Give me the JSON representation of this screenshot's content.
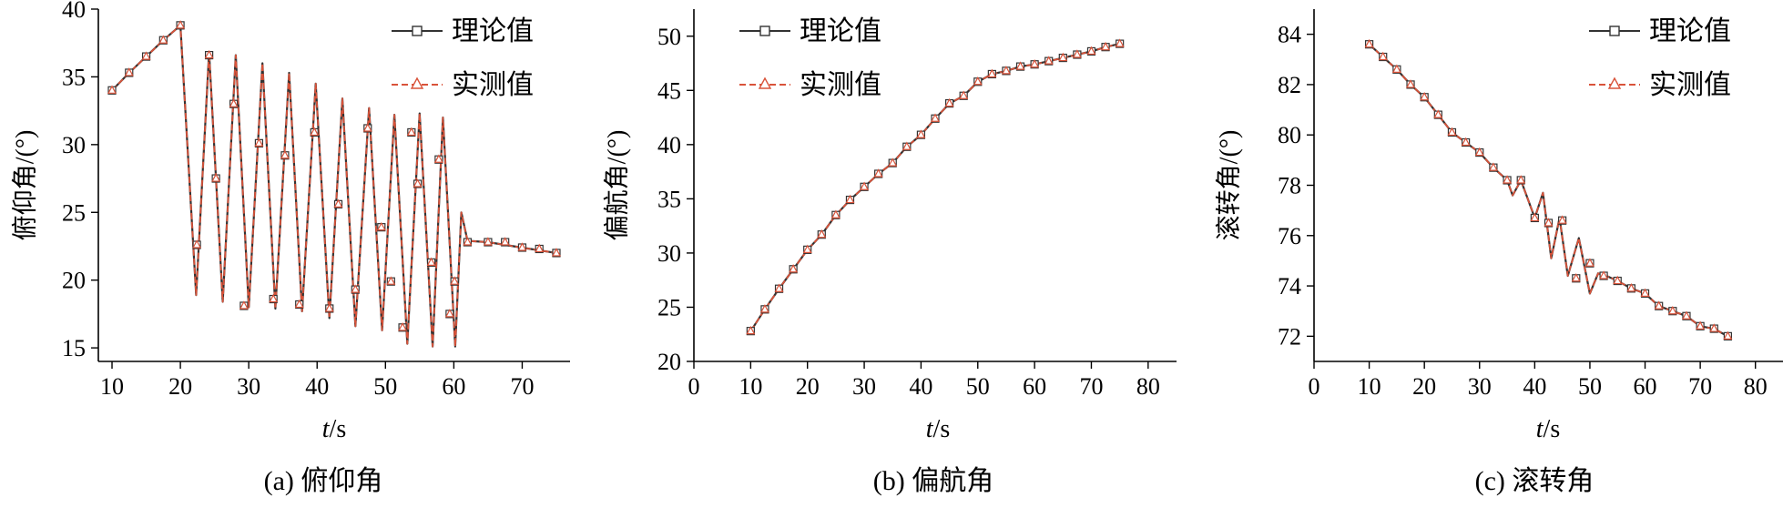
{
  "colors": {
    "theory": "#333333",
    "measured": "#d9533a",
    "axis": "#000000"
  },
  "chart_data": [
    {
      "type": "line",
      "caption": "(a) 俯仰角",
      "xlabel_var": "t",
      "xlabel_unit": "/s",
      "ylabel": "俯仰角/(°)",
      "xlim": [
        8,
        77
      ],
      "ylim": [
        14,
        40
      ],
      "xticks": [
        10,
        20,
        30,
        40,
        50,
        60,
        70
      ],
      "yticks": [
        15,
        20,
        25,
        30,
        35,
        40
      ],
      "legend": [
        "理论值",
        "实测值"
      ],
      "theory_line": [
        [
          10,
          34
        ],
        [
          12.5,
          35.3
        ],
        [
          15,
          36.5
        ],
        [
          17.5,
          37.7
        ],
        [
          20,
          38.8
        ],
        [
          22.3,
          18.9
        ],
        [
          24.2,
          36.8
        ],
        [
          26.2,
          18.4
        ],
        [
          28.1,
          36.6
        ],
        [
          30,
          18
        ],
        [
          32,
          36
        ],
        [
          33.9,
          17.9
        ],
        [
          35.9,
          35.3
        ],
        [
          37.8,
          17.7
        ],
        [
          39.8,
          34.5
        ],
        [
          41.8,
          17.2
        ],
        [
          43.7,
          33.4
        ],
        [
          45.6,
          16.6
        ],
        [
          47.6,
          32.7
        ],
        [
          49.5,
          16.3
        ],
        [
          51.3,
          32.2
        ],
        [
          53.2,
          15.3
        ],
        [
          55,
          32.3
        ],
        [
          56.9,
          15.1
        ],
        [
          58.4,
          32
        ],
        [
          60.2,
          15.1
        ],
        [
          61.1,
          25
        ],
        [
          62,
          22.9
        ],
        [
          65,
          22.8
        ],
        [
          70,
          22.4
        ],
        [
          75,
          22
        ]
      ],
      "markers": [
        [
          10,
          34
        ],
        [
          12.5,
          35.3
        ],
        [
          15,
          36.5
        ],
        [
          17.5,
          37.7
        ],
        [
          20,
          38.8
        ],
        [
          22.4,
          22.6
        ],
        [
          24.2,
          36.6
        ],
        [
          25.2,
          27.5
        ],
        [
          27.8,
          33
        ],
        [
          29.3,
          18.1
        ],
        [
          31.5,
          30.1
        ],
        [
          33.6,
          18.6
        ],
        [
          35.3,
          29.2
        ],
        [
          37.4,
          18.2
        ],
        [
          39.6,
          30.9
        ],
        [
          41.8,
          17.9
        ],
        [
          43.1,
          25.6
        ],
        [
          45.6,
          19.3
        ],
        [
          47.4,
          31.2
        ],
        [
          49.4,
          23.9
        ],
        [
          50.8,
          19.9
        ],
        [
          52.5,
          16.5
        ],
        [
          53.8,
          30.9
        ],
        [
          54.7,
          27.1
        ],
        [
          56.7,
          21.3
        ],
        [
          57.8,
          28.9
        ],
        [
          59.4,
          17.5
        ],
        [
          60.1,
          19.9
        ],
        [
          62,
          22.8
        ],
        [
          65,
          22.8
        ],
        [
          67.5,
          22.8
        ],
        [
          70,
          22.4
        ],
        [
          72.5,
          22.3
        ],
        [
          75,
          22
        ]
      ]
    },
    {
      "type": "line",
      "caption": "(b) 偏航角",
      "xlabel_var": "t",
      "xlabel_unit": "/s",
      "ylabel": "偏航角/(°)",
      "xlim": [
        0,
        85
      ],
      "ylim": [
        20,
        52.5
      ],
      "xticks": [
        0,
        10,
        20,
        30,
        40,
        50,
        60,
        70,
        80
      ],
      "yticks": [
        20,
        25,
        30,
        35,
        40,
        45,
        50
      ],
      "legend": [
        "理论值",
        "实测值"
      ],
      "theory_line": [
        [
          10,
          22.8
        ],
        [
          12.5,
          24.8
        ],
        [
          15,
          26.7
        ],
        [
          17.5,
          28.5
        ],
        [
          20,
          30.3
        ],
        [
          22.5,
          31.7
        ],
        [
          25,
          33.5
        ],
        [
          27.5,
          34.9
        ],
        [
          30,
          36.1
        ],
        [
          32.5,
          37.3
        ],
        [
          35,
          38.3
        ],
        [
          37.5,
          39.8
        ],
        [
          40,
          40.9
        ],
        [
          42.5,
          42.4
        ],
        [
          45,
          43.8
        ],
        [
          47.5,
          44.5
        ],
        [
          50,
          45.8
        ],
        [
          52.5,
          46.5
        ],
        [
          55,
          46.8
        ],
        [
          57.5,
          47.2
        ],
        [
          60,
          47.4
        ],
        [
          62.5,
          47.7
        ],
        [
          65,
          48
        ],
        [
          67.5,
          48.3
        ],
        [
          70,
          48.6
        ],
        [
          72.5,
          49
        ],
        [
          75,
          49.3
        ]
      ],
      "markers": [
        [
          10,
          22.8
        ],
        [
          12.5,
          24.8
        ],
        [
          15,
          26.7
        ],
        [
          17.5,
          28.5
        ],
        [
          20,
          30.3
        ],
        [
          22.5,
          31.7
        ],
        [
          25,
          33.5
        ],
        [
          27.5,
          34.9
        ],
        [
          30,
          36.1
        ],
        [
          32.5,
          37.3
        ],
        [
          35,
          38.3
        ],
        [
          37.5,
          39.8
        ],
        [
          40,
          40.9
        ],
        [
          42.5,
          42.4
        ],
        [
          45,
          43.8
        ],
        [
          47.5,
          44.5
        ],
        [
          50,
          45.8
        ],
        [
          52.5,
          46.5
        ],
        [
          55,
          46.8
        ],
        [
          57.5,
          47.2
        ],
        [
          60,
          47.4
        ],
        [
          62.5,
          47.7
        ],
        [
          65,
          48
        ],
        [
          67.5,
          48.3
        ],
        [
          70,
          48.6
        ],
        [
          72.5,
          49
        ],
        [
          75,
          49.3
        ]
      ]
    },
    {
      "type": "line",
      "caption": "(c) 滚转角",
      "xlabel_var": "t",
      "xlabel_unit": "/s",
      "ylabel": "滚转角/(°)",
      "xlim": [
        0,
        85
      ],
      "ylim": [
        71,
        85
      ],
      "xticks": [
        0,
        10,
        20,
        30,
        40,
        50,
        60,
        70,
        80
      ],
      "yticks": [
        72,
        74,
        76,
        78,
        80,
        82,
        84
      ],
      "legend": [
        "理论值",
        "实测值"
      ],
      "theory_line": [
        [
          10,
          83.6
        ],
        [
          12.5,
          83.1
        ],
        [
          15,
          82.6
        ],
        [
          17.5,
          82
        ],
        [
          20,
          81.5
        ],
        [
          22.5,
          80.8
        ],
        [
          25,
          80.1
        ],
        [
          27.5,
          79.7
        ],
        [
          30,
          79.3
        ],
        [
          32.5,
          78.7
        ],
        [
          35,
          78.2
        ],
        [
          36,
          77.6
        ],
        [
          37.5,
          78.2
        ],
        [
          40,
          76.7
        ],
        [
          41.5,
          77.7
        ],
        [
          43,
          75.1
        ],
        [
          44.5,
          76.7
        ],
        [
          46,
          74.4
        ],
        [
          48,
          75.9
        ],
        [
          50,
          73.7
        ],
        [
          51.5,
          74.5
        ],
        [
          53,
          74.4
        ],
        [
          55,
          74.2
        ],
        [
          57.5,
          73.9
        ],
        [
          60,
          73.7
        ],
        [
          62.5,
          73.2
        ],
        [
          65,
          73
        ],
        [
          67.5,
          72.8
        ],
        [
          70,
          72.4
        ],
        [
          72.5,
          72.3
        ],
        [
          75,
          72
        ]
      ],
      "markers": [
        [
          10,
          83.6
        ],
        [
          12.5,
          83.1
        ],
        [
          15,
          82.6
        ],
        [
          17.5,
          82
        ],
        [
          20,
          81.5
        ],
        [
          22.5,
          80.8
        ],
        [
          25,
          80.1
        ],
        [
          27.5,
          79.7
        ],
        [
          30,
          79.3
        ],
        [
          32.5,
          78.7
        ],
        [
          35,
          78.2
        ],
        [
          37.5,
          78.2
        ],
        [
          40,
          76.7
        ],
        [
          42.5,
          76.5
        ],
        [
          45,
          76.6
        ],
        [
          47.5,
          74.3
        ],
        [
          50,
          74.9
        ],
        [
          52.5,
          74.4
        ],
        [
          55,
          74.2
        ],
        [
          57.5,
          73.9
        ],
        [
          60,
          73.7
        ],
        [
          62.5,
          73.2
        ],
        [
          65,
          73
        ],
        [
          67.5,
          72.8
        ],
        [
          70,
          72.4
        ],
        [
          72.5,
          72.3
        ],
        [
          75,
          72
        ]
      ]
    }
  ]
}
